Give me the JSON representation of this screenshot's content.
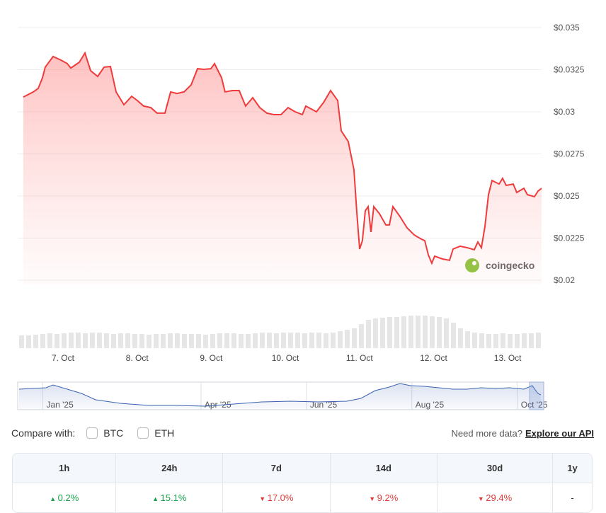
{
  "chart_data": [
    {
      "type": "line",
      "series": [
        {
          "color": "#ef3b3b",
          "x": [
            6.465,
            6.599,
            6.666,
            6.723,
            6.761,
            6.867,
            6.972,
            7.058,
            7.105,
            7.22,
            7.296,
            7.373,
            7.468,
            7.554,
            7.64,
            7.717,
            7.822,
            7.927,
            8.003,
            8.089,
            8.185,
            8.27,
            8.376,
            8.452,
            8.538,
            8.633,
            8.729,
            8.815,
            8.901,
            8.996,
            9.044,
            9.14,
            9.187,
            9.283,
            9.378,
            9.464,
            9.56,
            9.655,
            9.751,
            9.846,
            9.942,
            10.037,
            10.133,
            10.229,
            10.276,
            10.42,
            10.515,
            10.611,
            10.706,
            10.754,
            10.849,
            10.926,
            10.964,
            11.002,
            11.04,
            11.079,
            11.117,
            11.155,
            11.193,
            11.27,
            11.356,
            11.403,
            11.451,
            11.547,
            11.642,
            11.738,
            11.833,
            11.881,
            11.929,
            11.976,
            12.015,
            12.12,
            12.215,
            12.263,
            12.358,
            12.454,
            12.549,
            12.597,
            12.645,
            12.693,
            12.741,
            12.788,
            12.884,
            12.931,
            12.979,
            13.075,
            13.122,
            13.218,
            13.266,
            13.361,
            13.409,
            13.457
          ],
          "values": [
            0.03088,
            0.03118,
            0.03139,
            0.03202,
            0.03265,
            0.03328,
            0.03307,
            0.03286,
            0.0326,
            0.03294,
            0.03349,
            0.03244,
            0.0321,
            0.03265,
            0.03269,
            0.03118,
            0.03042,
            0.03092,
            0.03067,
            0.03034,
            0.03025,
            0.02992,
            0.02992,
            0.03118,
            0.03109,
            0.03118,
            0.0316,
            0.03256,
            0.03252,
            0.03256,
            0.03286,
            0.03202,
            0.03118,
            0.03126,
            0.03126,
            0.03034,
            0.03084,
            0.03025,
            0.02992,
            0.02983,
            0.02983,
            0.03025,
            0.03,
            0.02983,
            0.03034,
            0.03,
            0.03055,
            0.03126,
            0.03067,
            0.02887,
            0.02824,
            0.02655,
            0.02403,
            0.02185,
            0.02235,
            0.02412,
            0.02437,
            0.02286,
            0.02437,
            0.02395,
            0.02328,
            0.02328,
            0.02437,
            0.02378,
            0.02311,
            0.02269,
            0.02244,
            0.02235,
            0.02151,
            0.02101,
            0.02143,
            0.02126,
            0.02118,
            0.02185,
            0.02202,
            0.02193,
            0.02181,
            0.02227,
            0.02193,
            0.02319,
            0.02508,
            0.02592,
            0.02571,
            0.02605,
            0.02563,
            0.02571,
            0.02521,
            0.02546,
            0.02508,
            0.02496,
            0.02529,
            0.02546
          ]
        }
      ],
      "xlim": [
        6.389,
        13.457
      ],
      "ylim": [
        0.02,
        0.035
      ],
      "xticks": [
        {
          "value": 7,
          "label": "7. Oct"
        },
        {
          "value": 8,
          "label": "8. Oct"
        },
        {
          "value": 9,
          "label": "9. Oct"
        },
        {
          "value": 10,
          "label": "10. Oct"
        },
        {
          "value": 11,
          "label": "11. Oct"
        },
        {
          "value": 12,
          "label": "12. Oct"
        },
        {
          "value": 13,
          "label": "13. Oct"
        }
      ],
      "yticks": [
        {
          "value": 0.02,
          "label": "$0.02"
        },
        {
          "value": 0.0225,
          "label": "$0.0225"
        },
        {
          "value": 0.025,
          "label": "$0.025"
        },
        {
          "value": 0.0275,
          "label": "$0.0275"
        },
        {
          "value": 0.03,
          "label": "$0.03"
        },
        {
          "value": 0.0325,
          "label": "$0.0325"
        },
        {
          "value": 0.035,
          "label": "$0.035"
        }
      ],
      "grid": true,
      "watermark": "coingecko"
    },
    {
      "type": "bar",
      "color": "#e6e6e6",
      "values": [
        18,
        18,
        19,
        20,
        21,
        20,
        21,
        22,
        22,
        21,
        22,
        22,
        21,
        20,
        21,
        21,
        20,
        20,
        19,
        20,
        20,
        21,
        21,
        20,
        20,
        20,
        19,
        20,
        21,
        21,
        21,
        20,
        20,
        21,
        22,
        22,
        21,
        22,
        22,
        22,
        21,
        22,
        22,
        21,
        22,
        24,
        26,
        28,
        34,
        40,
        42,
        43,
        44,
        44,
        45,
        46,
        46,
        46,
        45,
        44,
        42,
        36,
        28,
        24,
        22,
        21,
        20,
        20,
        21,
        20,
        20,
        21,
        21,
        22
      ]
    },
    {
      "type": "area",
      "color": "#3b62b0",
      "x": [
        0.551,
        0.792,
        1.061,
        1.195,
        1.464,
        1.732,
        2.001,
        2.47,
        3.007,
        3.544,
        4.081,
        4.618,
        5.155,
        5.692,
        6.229,
        6.766,
        7.034,
        7.303,
        7.571,
        7.772,
        7.974,
        8.242,
        8.51,
        8.779,
        9.047,
        9.316,
        9.584,
        9.853,
        10.121,
        10.282,
        10.39,
        10.443
      ],
      "values": [
        0.02679,
        0.02742,
        0.02806,
        0.0306,
        0.02679,
        0.02298,
        0.01726,
        0.01409,
        0.01218,
        0.01218,
        0.01155,
        0.01345,
        0.01536,
        0.01599,
        0.01536,
        0.01599,
        0.01853,
        0.02552,
        0.02869,
        0.03187,
        0.02996,
        0.02933,
        0.02806,
        0.02679,
        0.02679,
        0.02806,
        0.02742,
        0.02806,
        0.02679,
        0.02996,
        0.02298,
        0.02171
      ],
      "xlim": [
        0.524,
        10.5
      ],
      "ylim": [
        0.009,
        0.0325
      ],
      "xticks": [
        {
          "value": 1,
          "label": "Jan '25"
        },
        {
          "value": 4,
          "label": "Apr '25"
        },
        {
          "value": 6,
          "label": "Jun '25"
        },
        {
          "value": 8,
          "label": "Aug '25"
        },
        {
          "value": 10,
          "label": "Oct '25"
        }
      ]
    }
  ],
  "compare": {
    "label": "Compare with:",
    "options": [
      "BTC",
      "ETH"
    ],
    "prompt": "Need more data?",
    "link": "Explore our API"
  },
  "table": {
    "headers": [
      "1h",
      "24h",
      "7d",
      "14d",
      "30d",
      "1y"
    ],
    "row": [
      {
        "text": "0.2%",
        "trend": "up"
      },
      {
        "text": "15.1%",
        "trend": "up"
      },
      {
        "text": "17.0%",
        "trend": "down"
      },
      {
        "text": "9.2%",
        "trend": "down"
      },
      {
        "text": "29.4%",
        "trend": "down"
      },
      {
        "text": "-"
      }
    ]
  }
}
